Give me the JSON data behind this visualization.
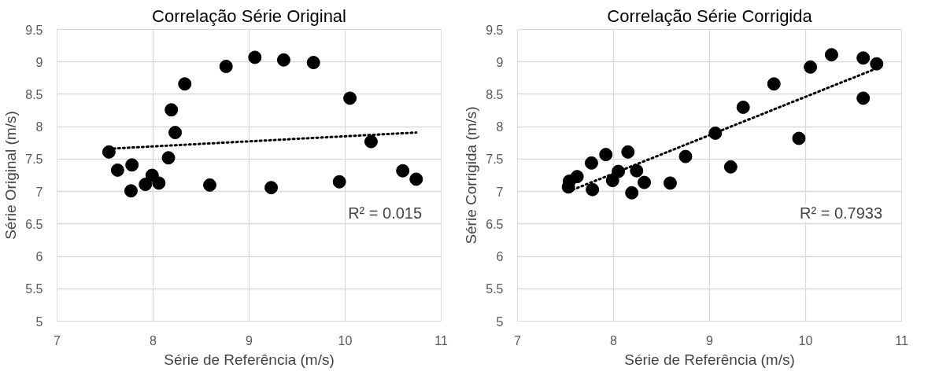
{
  "chart_data": [
    {
      "type": "scatter",
      "title": "Correlação Série Original",
      "xlabel": "Série de Referência (m/s)",
      "ylabel": "Série Original (m/s)",
      "xlim": [
        7,
        11
      ],
      "ylim": [
        5,
        9.5
      ],
      "xticks": [
        7,
        8,
        9,
        10,
        11
      ],
      "yticks": [
        5,
        5.5,
        6,
        6.5,
        7,
        7.5,
        8,
        8.5,
        9,
        9.5
      ],
      "grid": true,
      "marker": "circle",
      "annotations": [
        "R² = 0.015"
      ],
      "series": [
        {
          "type": "scatter",
          "color": "#000000",
          "x": [
            7.54,
            7.63,
            7.78,
            7.77,
            7.92,
            7.99,
            8.06,
            8.16,
            8.19,
            8.23,
            8.33,
            8.59,
            8.76,
            9.06,
            9.23,
            9.36,
            9.67,
            9.94,
            10.05,
            10.27,
            10.6,
            10.74
          ],
          "values": [
            7.61,
            7.33,
            7.41,
            7.01,
            7.11,
            7.25,
            7.13,
            7.52,
            8.26,
            7.91,
            8.66,
            7.1,
            8.93,
            9.07,
            7.06,
            9.03,
            8.99,
            7.15,
            8.44,
            7.77,
            7.32,
            7.19
          ]
        },
        {
          "type": "line",
          "color": "#000000",
          "line_style": "dotted",
          "marker": "none",
          "x": [
            7.54,
            10.74
          ],
          "values": [
            7.66,
            7.91
          ]
        }
      ]
    },
    {
      "type": "scatter",
      "title": "Correlação Série Corrigida",
      "xlabel": "Série de Referência (m/s)",
      "ylabel": "Série Corrigida (m/s)",
      "xlim": [
        7,
        11
      ],
      "ylim": [
        5,
        9.5
      ],
      "xticks": [
        7,
        8,
        9,
        10,
        11
      ],
      "yticks": [
        5,
        5.5,
        6,
        6.5,
        7,
        7.5,
        8,
        8.5,
        9,
        9.5
      ],
      "grid": true,
      "marker": "circle",
      "annotations": [
        "R² = 0.7933"
      ],
      "series": [
        {
          "type": "scatter",
          "color": "#000000",
          "x": [
            7.53,
            7.54,
            7.62,
            7.77,
            7.78,
            7.92,
            7.99,
            8.05,
            8.15,
            8.19,
            8.24,
            8.32,
            8.59,
            8.75,
            9.06,
            9.22,
            9.35,
            9.67,
            9.93,
            10.05,
            10.27,
            10.6,
            10.6,
            10.74
          ],
          "values": [
            7.07,
            7.16,
            7.23,
            7.44,
            7.03,
            7.57,
            7.17,
            7.31,
            7.61,
            6.98,
            7.32,
            7.14,
            7.13,
            7.54,
            7.9,
            7.38,
            8.3,
            8.66,
            7.82,
            8.92,
            9.11,
            9.06,
            8.44,
            8.97
          ]
        },
        {
          "type": "line",
          "color": "#000000",
          "line_style": "dotted",
          "marker": "none",
          "x": [
            7.53,
            10.74
          ],
          "values": [
            7.0,
            8.9
          ]
        }
      ]
    }
  ]
}
